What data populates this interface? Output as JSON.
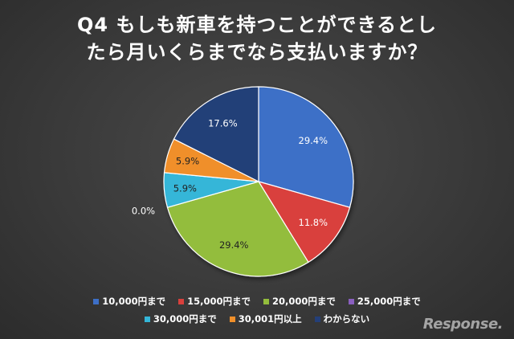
{
  "chart_data": {
    "type": "pie",
    "title_lines": [
      "Q4 もしも新車を持つことができるとし",
      "たら月いくらまでなら支払いますか？"
    ],
    "categories": [
      "10,000円まで",
      "15,000円まで",
      "20,000円まで",
      "25,000円まで",
      "30,000円まで",
      "30,001円以上",
      "わからない"
    ],
    "values": [
      29.4,
      11.8,
      29.4,
      0.0,
      5.9,
      5.9,
      17.6
    ],
    "value_labels": [
      "29.4%",
      "11.8%",
      "29.4%",
      "0.0%",
      "5.9%",
      "5.9%",
      "17.6%"
    ],
    "colors": [
      "#3d6fc7",
      "#d9403c",
      "#93bd3c",
      "#8a5fbf",
      "#34b6d8",
      "#f08f2a",
      "#243f78"
    ],
    "label_colors": [
      "#ffffff",
      "#ffffff",
      "#222222",
      "#ffffff",
      "#222222",
      "#222222",
      "#ffffff"
    ],
    "legend_position": "bottom"
  },
  "watermark": "Response."
}
